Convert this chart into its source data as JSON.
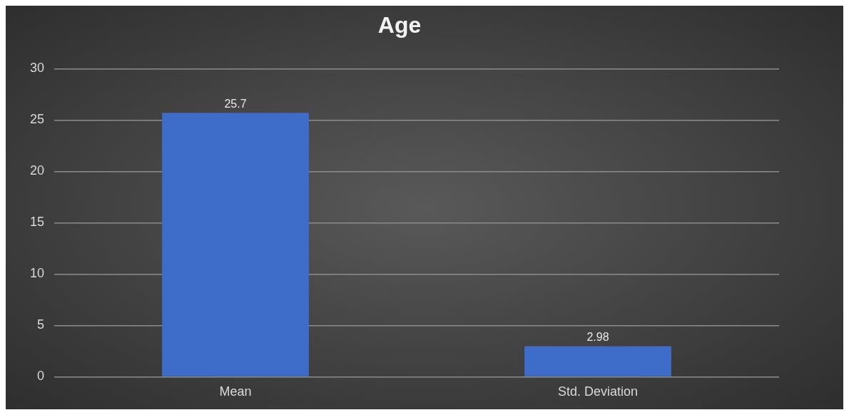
{
  "chart_data": {
    "type": "bar",
    "title": "Age",
    "categories": [
      "Mean",
      "Std. Deviation"
    ],
    "values": [
      25.7,
      2.98
    ],
    "color": "#3d6cc9",
    "ylim": [
      0,
      30
    ],
    "yticks": [
      0,
      5,
      10,
      15,
      20,
      25,
      30
    ],
    "grid": "y",
    "data_labels": true
  }
}
